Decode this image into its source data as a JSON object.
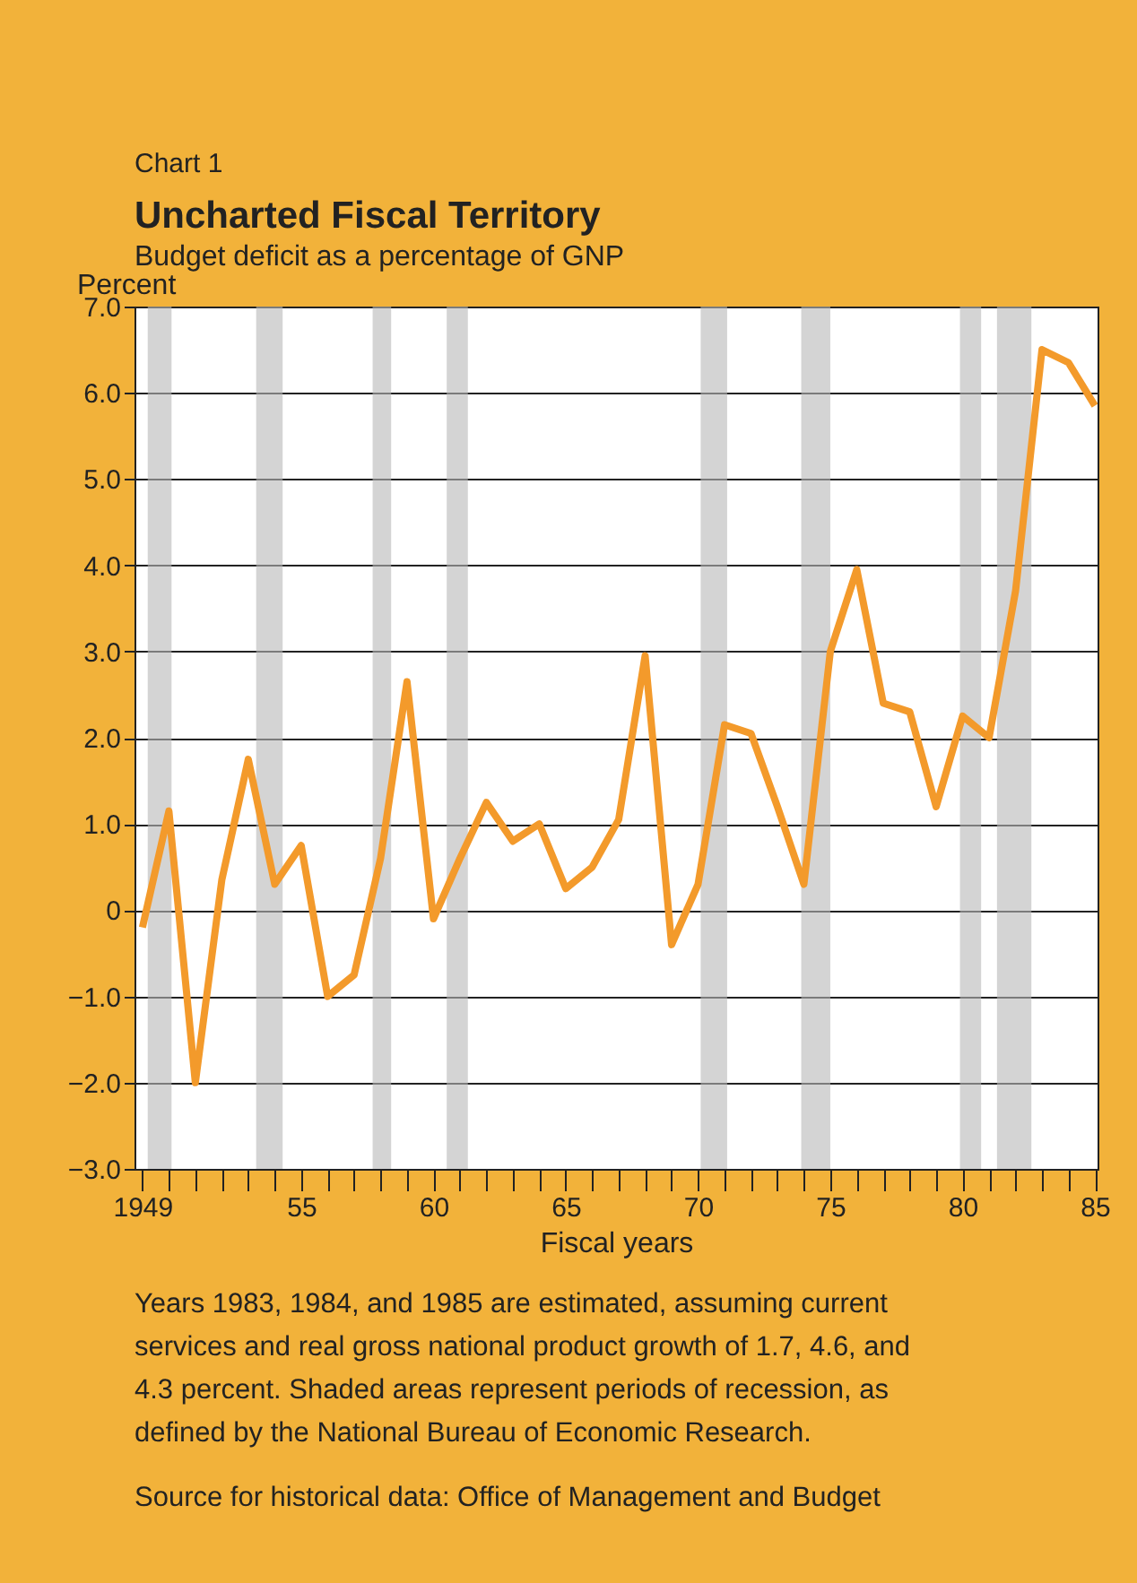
{
  "chart_data": {
    "type": "line",
    "title": "Uncharted Fiscal Territory",
    "subtitle": "Budget deficit as a percentage of GNP",
    "xlabel": "Fiscal years",
    "ylabel": "Percent",
    "annotations": [
      "Chart 1",
      "Years 1983, 1984, and 1985 are estimated, assuming current services and real gross national product growth of 1.7, 4.6, and 4.3 percent. Shaded areas represent periods of recession, as defined by the National Bureau of Economic Research.",
      "Source for historical data: Office of Management and Budget"
    ],
    "x": [
      1949,
      1950,
      1951,
      1952,
      1953,
      1954,
      1955,
      1956,
      1957,
      1958,
      1959,
      1960,
      1961,
      1962,
      1963,
      1964,
      1965,
      1966,
      1967,
      1968,
      1969,
      1970,
      1971,
      1972,
      1973,
      1974,
      1975,
      1976,
      1977,
      1978,
      1979,
      1980,
      1981,
      1982,
      1983,
      1984,
      1985
    ],
    "series": [
      {
        "color": "#f39a2b",
        "values": [
          -0.2,
          1.15,
          -2.0,
          0.35,
          1.75,
          0.3,
          0.75,
          -1.0,
          -0.75,
          0.6,
          2.65,
          -0.1,
          0.6,
          1.25,
          0.8,
          1.0,
          0.25,
          0.5,
          1.05,
          2.95,
          -0.4,
          0.3,
          2.15,
          2.05,
          1.2,
          0.3,
          3.0,
          3.95,
          2.4,
          2.3,
          1.2,
          2.25,
          2.0,
          3.7,
          6.5,
          6.35,
          5.85
        ]
      }
    ],
    "xlim": [
      1948.7,
      1985.1
    ],
    "xticks": [
      {
        "value": 1949,
        "label": "1949"
      },
      {
        "value": 1950,
        "label": null
      },
      {
        "value": 1951,
        "label": null
      },
      {
        "value": 1952,
        "label": null
      },
      {
        "value": 1953,
        "label": null
      },
      {
        "value": 1954,
        "label": null
      },
      {
        "value": 1955,
        "label": "55"
      },
      {
        "value": 1956,
        "label": null
      },
      {
        "value": 1957,
        "label": null
      },
      {
        "value": 1958,
        "label": null
      },
      {
        "value": 1959,
        "label": null
      },
      {
        "value": 1960,
        "label": "60"
      },
      {
        "value": 1961,
        "label": null
      },
      {
        "value": 1962,
        "label": null
      },
      {
        "value": 1963,
        "label": null
      },
      {
        "value": 1964,
        "label": null
      },
      {
        "value": 1965,
        "label": "65"
      },
      {
        "value": 1966,
        "label": null
      },
      {
        "value": 1967,
        "label": null
      },
      {
        "value": 1968,
        "label": null
      },
      {
        "value": 1969,
        "label": null
      },
      {
        "value": 1970,
        "label": "70"
      },
      {
        "value": 1971,
        "label": null
      },
      {
        "value": 1972,
        "label": null
      },
      {
        "value": 1973,
        "label": null
      },
      {
        "value": 1974,
        "label": null
      },
      {
        "value": 1975,
        "label": "75"
      },
      {
        "value": 1976,
        "label": null
      },
      {
        "value": 1977,
        "label": null
      },
      {
        "value": 1978,
        "label": null
      },
      {
        "value": 1979,
        "label": null
      },
      {
        "value": 1980,
        "label": "80"
      },
      {
        "value": 1981,
        "label": null
      },
      {
        "value": 1982,
        "label": null
      },
      {
        "value": 1983,
        "label": null
      },
      {
        "value": 1984,
        "label": null
      },
      {
        "value": 1985,
        "label": "85"
      }
    ],
    "ylim": [
      -3,
      7
    ],
    "yticks": [
      {
        "value": -3,
        "label": "−3.0"
      },
      {
        "value": -2,
        "label": "−2.0"
      },
      {
        "value": -1,
        "label": "−1.0"
      },
      0,
      {
        "value": 1,
        "label": "1.0"
      },
      {
        "value": 2,
        "label": "2.0"
      },
      {
        "value": 3,
        "label": "3.0"
      },
      {
        "value": 4,
        "label": "4.0"
      },
      {
        "value": 5,
        "label": "5.0"
      },
      {
        "value": 6,
        "label": "6.0"
      },
      {
        "value": 7,
        "label": "7.0"
      }
    ],
    "bands": [
      {
        "axis": "x",
        "from": 1949.2,
        "to": 1950.1,
        "color": "#b8b8b8"
      },
      {
        "axis": "x",
        "from": 1953.3,
        "to": 1954.3,
        "color": "#b8b8b8"
      },
      {
        "axis": "x",
        "from": 1957.7,
        "to": 1958.4,
        "color": "#b8b8b8"
      },
      {
        "axis": "x",
        "from": 1960.5,
        "to": 1961.3,
        "color": "#b8b8b8"
      },
      {
        "axis": "x",
        "from": 1970.1,
        "to": 1971.1,
        "color": "#b8b8b8"
      },
      {
        "axis": "x",
        "from": 1973.9,
        "to": 1975.0,
        "color": "#b8b8b8"
      },
      {
        "axis": "x",
        "from": 1979.9,
        "to": 1980.7,
        "color": "#b8b8b8"
      },
      {
        "axis": "x",
        "from": 1981.3,
        "to": 1982.6,
        "color": "#b8b8b8"
      }
    ],
    "grid": "y",
    "marker": "none",
    "line_style": "solid"
  }
}
